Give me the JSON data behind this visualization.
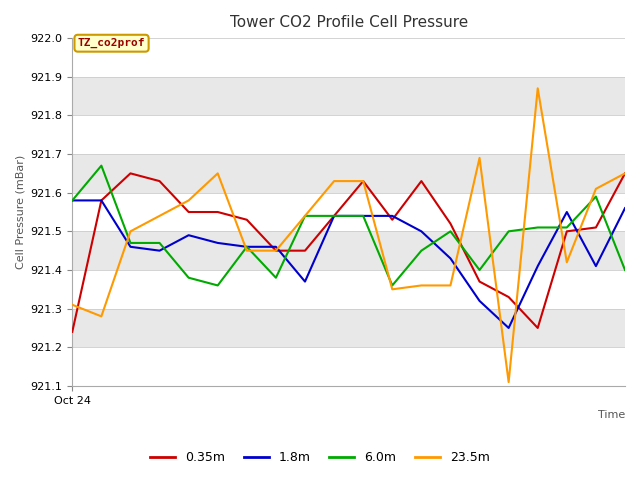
{
  "title": "Tower CO2 Profile Cell Pressure",
  "ylabel": "Cell Pressure (mBar)",
  "xlabel": "Time",
  "xlim_label": "Oct 24",
  "ylim": [
    921.1,
    922.0
  ],
  "yticks": [
    921.1,
    921.2,
    921.3,
    921.4,
    921.5,
    921.6,
    921.7,
    921.8,
    921.9,
    922.0
  ],
  "legend_label": "TZ_co2prof",
  "fig_bg": "#ffffff",
  "plot_bg": "#ffffff",
  "band_color": "#e8e8e8",
  "grid_color": "#cccccc",
  "series": {
    "0.35m": {
      "color": "#cc0000",
      "values": [
        921.24,
        921.58,
        921.65,
        921.63,
        921.55,
        921.55,
        921.53,
        921.45,
        921.45,
        921.54,
        921.63,
        921.53,
        921.63,
        921.52,
        921.37,
        921.33,
        921.25,
        921.5,
        921.51,
        921.65
      ]
    },
    "1.8m": {
      "color": "#0000cc",
      "values": [
        921.58,
        921.58,
        921.46,
        921.45,
        921.49,
        921.47,
        921.46,
        921.46,
        921.37,
        921.54,
        921.54,
        921.54,
        921.5,
        921.43,
        921.32,
        921.25,
        921.41,
        921.55,
        921.41,
        921.56
      ]
    },
    "6.0m": {
      "color": "#00aa00",
      "values": [
        921.58,
        921.67,
        921.47,
        921.47,
        921.38,
        921.36,
        921.46,
        921.38,
        921.54,
        921.54,
        921.54,
        921.36,
        921.45,
        921.5,
        921.4,
        921.5,
        921.51,
        921.51,
        921.59,
        921.4
      ]
    },
    "23.5m": {
      "color": "#ff9900",
      "values": [
        921.31,
        921.28,
        921.5,
        921.54,
        921.58,
        921.65,
        921.45,
        921.45,
        921.54,
        921.63,
        921.63,
        921.35,
        921.36,
        921.36,
        921.69,
        921.11,
        921.87,
        921.42,
        921.61,
        921.65
      ]
    }
  }
}
